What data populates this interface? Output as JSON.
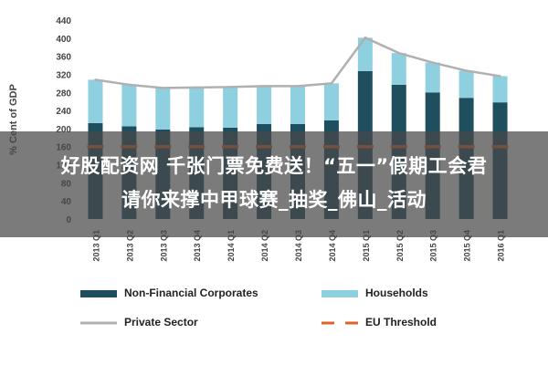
{
  "chart_data": {
    "type": "bar",
    "stacked": true,
    "title": "",
    "xlabel": "",
    "ylabel": "% Cent of GDP",
    "ylim": [
      0,
      440
    ],
    "yticks": [
      0,
      40,
      80,
      120,
      160,
      200,
      240,
      280,
      320,
      360,
      400,
      440
    ],
    "grid": false,
    "legend_position": "bottom",
    "categories": [
      "2013 Q1",
      "2013 Q2",
      "2013 Q3",
      "2013 Q4",
      "2014 Q1",
      "2014 Q2",
      "2014 Q3",
      "2014 Q4",
      "2015 Q1",
      "2015 Q2",
      "2015 Q3",
      "2015 Q4",
      "2016 Q1"
    ],
    "series": [
      {
        "name": "Non-Financial Corporates",
        "type": "bar",
        "color": "#1f4e5f",
        "values": [
          212,
          205,
          198,
          203,
          202,
          210,
          210,
          218,
          327,
          297,
          280,
          268,
          258
        ]
      },
      {
        "name": "Households",
        "type": "bar",
        "color": "#8ecfe0",
        "values": [
          96,
          92,
          92,
          88,
          90,
          84,
          84,
          82,
          74,
          70,
          66,
          60,
          58
        ]
      },
      {
        "name": "Private Sector",
        "type": "line",
        "color": "#b0b0b0",
        "values": [
          308,
          297,
          290,
          291,
          292,
          294,
          294,
          300,
          401,
          367,
          346,
          328,
          316
        ]
      },
      {
        "name": "EU Threshold",
        "type": "line",
        "style": "dashed",
        "color": "#e0642a",
        "values": [
          160,
          160,
          160,
          160,
          160,
          160,
          160,
          160,
          160,
          160,
          160,
          160,
          160
        ]
      }
    ]
  },
  "overlay": {
    "line1": "好股配资网 千张门票免费送！“五一”假期工会君",
    "line2": "请你来撑中甲球赛_抽奖_佛山_活动"
  }
}
